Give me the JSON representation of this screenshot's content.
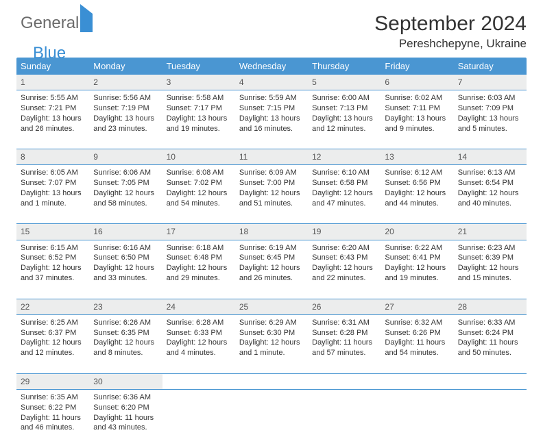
{
  "logo": {
    "line1": "General",
    "line2": "Blue"
  },
  "title": "September 2024",
  "location": "Pereshchepyne, Ukraine",
  "colors": {
    "header_bg": "#4a96d2",
    "header_text": "#ffffff",
    "daynum_bg": "#eceded",
    "divider": "#4a96d2",
    "text": "#333333",
    "logo_gray": "#6b6b6b",
    "logo_blue": "#3a8fd4",
    "page_bg": "#ffffff"
  },
  "daysOfWeek": [
    "Sunday",
    "Monday",
    "Tuesday",
    "Wednesday",
    "Thursday",
    "Friday",
    "Saturday"
  ],
  "weeks": [
    [
      {
        "num": "1",
        "sunrise": "5:55 AM",
        "sunset": "7:21 PM",
        "daylight": "13 hours and 26 minutes."
      },
      {
        "num": "2",
        "sunrise": "5:56 AM",
        "sunset": "7:19 PM",
        "daylight": "13 hours and 23 minutes."
      },
      {
        "num": "3",
        "sunrise": "5:58 AM",
        "sunset": "7:17 PM",
        "daylight": "13 hours and 19 minutes."
      },
      {
        "num": "4",
        "sunrise": "5:59 AM",
        "sunset": "7:15 PM",
        "daylight": "13 hours and 16 minutes."
      },
      {
        "num": "5",
        "sunrise": "6:00 AM",
        "sunset": "7:13 PM",
        "daylight": "13 hours and 12 minutes."
      },
      {
        "num": "6",
        "sunrise": "6:02 AM",
        "sunset": "7:11 PM",
        "daylight": "13 hours and 9 minutes."
      },
      {
        "num": "7",
        "sunrise": "6:03 AM",
        "sunset": "7:09 PM",
        "daylight": "13 hours and 5 minutes."
      }
    ],
    [
      {
        "num": "8",
        "sunrise": "6:05 AM",
        "sunset": "7:07 PM",
        "daylight": "13 hours and 1 minute."
      },
      {
        "num": "9",
        "sunrise": "6:06 AM",
        "sunset": "7:05 PM",
        "daylight": "12 hours and 58 minutes."
      },
      {
        "num": "10",
        "sunrise": "6:08 AM",
        "sunset": "7:02 PM",
        "daylight": "12 hours and 54 minutes."
      },
      {
        "num": "11",
        "sunrise": "6:09 AM",
        "sunset": "7:00 PM",
        "daylight": "12 hours and 51 minutes."
      },
      {
        "num": "12",
        "sunrise": "6:10 AM",
        "sunset": "6:58 PM",
        "daylight": "12 hours and 47 minutes."
      },
      {
        "num": "13",
        "sunrise": "6:12 AM",
        "sunset": "6:56 PM",
        "daylight": "12 hours and 44 minutes."
      },
      {
        "num": "14",
        "sunrise": "6:13 AM",
        "sunset": "6:54 PM",
        "daylight": "12 hours and 40 minutes."
      }
    ],
    [
      {
        "num": "15",
        "sunrise": "6:15 AM",
        "sunset": "6:52 PM",
        "daylight": "12 hours and 37 minutes."
      },
      {
        "num": "16",
        "sunrise": "6:16 AM",
        "sunset": "6:50 PM",
        "daylight": "12 hours and 33 minutes."
      },
      {
        "num": "17",
        "sunrise": "6:18 AM",
        "sunset": "6:48 PM",
        "daylight": "12 hours and 29 minutes."
      },
      {
        "num": "18",
        "sunrise": "6:19 AM",
        "sunset": "6:45 PM",
        "daylight": "12 hours and 26 minutes."
      },
      {
        "num": "19",
        "sunrise": "6:20 AM",
        "sunset": "6:43 PM",
        "daylight": "12 hours and 22 minutes."
      },
      {
        "num": "20",
        "sunrise": "6:22 AM",
        "sunset": "6:41 PM",
        "daylight": "12 hours and 19 minutes."
      },
      {
        "num": "21",
        "sunrise": "6:23 AM",
        "sunset": "6:39 PM",
        "daylight": "12 hours and 15 minutes."
      }
    ],
    [
      {
        "num": "22",
        "sunrise": "6:25 AM",
        "sunset": "6:37 PM",
        "daylight": "12 hours and 12 minutes."
      },
      {
        "num": "23",
        "sunrise": "6:26 AM",
        "sunset": "6:35 PM",
        "daylight": "12 hours and 8 minutes."
      },
      {
        "num": "24",
        "sunrise": "6:28 AM",
        "sunset": "6:33 PM",
        "daylight": "12 hours and 4 minutes."
      },
      {
        "num": "25",
        "sunrise": "6:29 AM",
        "sunset": "6:30 PM",
        "daylight": "12 hours and 1 minute."
      },
      {
        "num": "26",
        "sunrise": "6:31 AM",
        "sunset": "6:28 PM",
        "daylight": "11 hours and 57 minutes."
      },
      {
        "num": "27",
        "sunrise": "6:32 AM",
        "sunset": "6:26 PM",
        "daylight": "11 hours and 54 minutes."
      },
      {
        "num": "28",
        "sunrise": "6:33 AM",
        "sunset": "6:24 PM",
        "daylight": "11 hours and 50 minutes."
      }
    ],
    [
      {
        "num": "29",
        "sunrise": "6:35 AM",
        "sunset": "6:22 PM",
        "daylight": "11 hours and 46 minutes."
      },
      {
        "num": "30",
        "sunrise": "6:36 AM",
        "sunset": "6:20 PM",
        "daylight": "11 hours and 43 minutes."
      },
      null,
      null,
      null,
      null,
      null
    ]
  ],
  "labels": {
    "sunrise": "Sunrise:",
    "sunset": "Sunset:",
    "daylight": "Daylight:"
  }
}
